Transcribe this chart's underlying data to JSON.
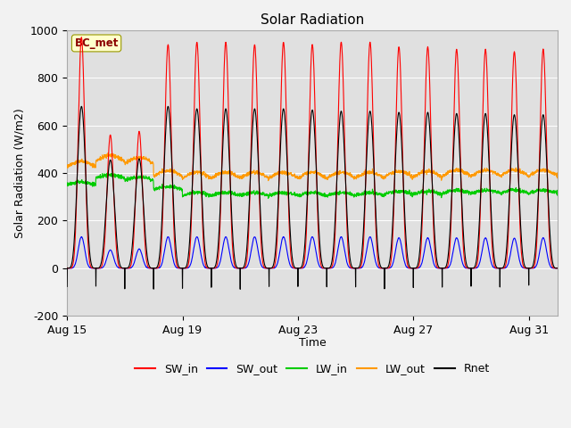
{
  "title": "Solar Radiation",
  "xlabel": "Time",
  "ylabel": "Solar Radiation (W/m2)",
  "ylim": [
    -200,
    1000
  ],
  "start_day": 15,
  "end_day": 32,
  "xtick_days": [
    15,
    19,
    23,
    27,
    31
  ],
  "xtick_labels": [
    "Aug 15",
    "Aug 19",
    "Aug 23",
    "Aug 27",
    "Aug 31"
  ],
  "colors": {
    "SW_in": "#ff0000",
    "SW_out": "#0000ff",
    "LW_in": "#00cc00",
    "LW_out": "#ff9900",
    "Rnet": "#000000"
  },
  "station_label": "BC_met",
  "station_label_color": "#8b0000",
  "station_box_color": "#ffffcc",
  "plot_bg_color": "#e0e0e0",
  "fig_bg_color": "#f2f2f2",
  "grid_color": "#ffffff",
  "title_fontsize": 11,
  "axis_fontsize": 9,
  "legend_fontsize": 9,
  "n_days": 17,
  "pts_per_day": 144,
  "SW_in_peak": [
    970,
    560,
    575,
    940,
    950,
    950,
    940,
    950,
    940,
    950,
    950,
    930,
    930,
    920,
    920,
    910,
    920
  ],
  "SW_out_peak": [
    155,
    90,
    95,
    155,
    155,
    155,
    155,
    155,
    155,
    155,
    155,
    150,
    150,
    150,
    150,
    148,
    150
  ],
  "LW_in_base": [
    350,
    380,
    370,
    330,
    305,
    305,
    305,
    305,
    305,
    305,
    305,
    310,
    310,
    315,
    315,
    315,
    315
  ],
  "LW_out_base": [
    425,
    450,
    440,
    385,
    378,
    378,
    378,
    378,
    378,
    378,
    378,
    382,
    382,
    387,
    387,
    387,
    387
  ],
  "Rnet_peak": [
    680,
    455,
    460,
    680,
    670,
    670,
    670,
    670,
    665,
    660,
    660,
    655,
    655,
    650,
    650,
    645,
    645
  ],
  "Rnet_night": -80,
  "line_width": 0.8
}
